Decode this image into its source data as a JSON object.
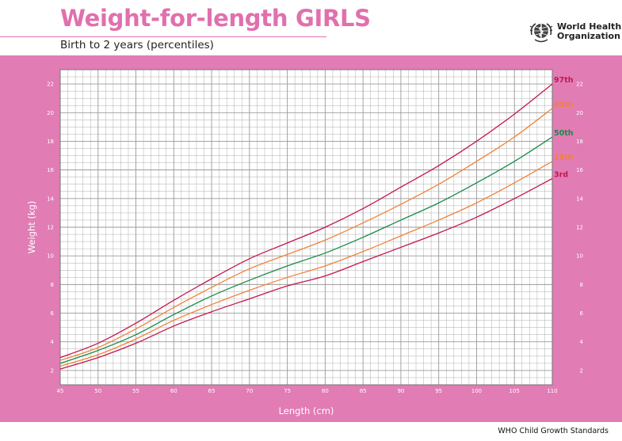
{
  "header": {
    "title": "Weight-for-length GIRLS",
    "subtitle": "Birth to 2 years (percentiles)",
    "org_line1": "World Health",
    "org_line2": "Organization",
    "footer": "WHO Child Growth Standards"
  },
  "colors": {
    "title": "#e170ad",
    "panel": "#e17cb4",
    "grid": "#9a9a9a",
    "p97": "#c4164f",
    "p85": "#f0833a",
    "p50": "#1a8a4a",
    "p15": "#f0833a",
    "p3": "#c4164f"
  },
  "chart_data": {
    "type": "line",
    "title": "Weight-for-length GIRLS",
    "subtitle": "Birth to 2 years (percentiles)",
    "xlabel": "Length (cm)",
    "ylabel": "Weight (kg)",
    "xlim": [
      45,
      110
    ],
    "ylim": [
      1,
      23
    ],
    "x_ticks": [
      45,
      50,
      55,
      60,
      65,
      70,
      75,
      80,
      85,
      90,
      95,
      100,
      105,
      110
    ],
    "y_ticks": [
      2,
      4,
      6,
      8,
      10,
      12,
      14,
      16,
      18,
      20,
      22
    ],
    "grid": true,
    "x": [
      45,
      50,
      55,
      60,
      65,
      70,
      75,
      80,
      85,
      90,
      95,
      100,
      105,
      110
    ],
    "series": [
      {
        "name": "97th",
        "color_key": "p97",
        "values": [
          2.9,
          3.9,
          5.3,
          6.9,
          8.4,
          9.8,
          10.9,
          12.0,
          13.3,
          14.8,
          16.3,
          18.0,
          19.9,
          22.0
        ]
      },
      {
        "name": "85th",
        "color_key": "p85",
        "values": [
          2.7,
          3.6,
          4.9,
          6.4,
          7.8,
          9.1,
          10.1,
          11.1,
          12.3,
          13.6,
          15.0,
          16.6,
          18.3,
          20.3
        ]
      },
      {
        "name": "50th",
        "color_key": "p50",
        "values": [
          2.5,
          3.4,
          4.5,
          5.9,
          7.2,
          8.3,
          9.3,
          10.2,
          11.3,
          12.5,
          13.7,
          15.1,
          16.6,
          18.3
        ]
      },
      {
        "name": "15th",
        "color_key": "p15",
        "values": [
          2.3,
          3.1,
          4.2,
          5.5,
          6.6,
          7.6,
          8.5,
          9.3,
          10.3,
          11.4,
          12.5,
          13.7,
          15.1,
          16.6
        ]
      },
      {
        "name": "3rd",
        "color_key": "p3",
        "values": [
          2.1,
          2.9,
          3.9,
          5.1,
          6.1,
          7.0,
          7.9,
          8.6,
          9.6,
          10.6,
          11.6,
          12.7,
          14.0,
          15.4
        ]
      }
    ]
  }
}
